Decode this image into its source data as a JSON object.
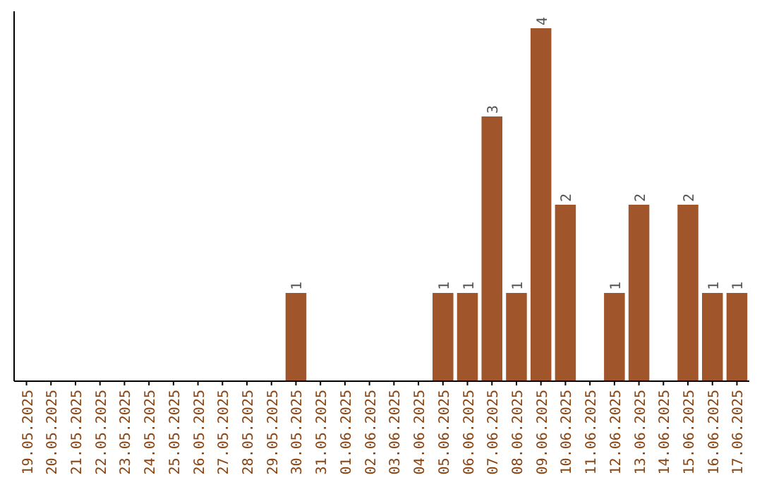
{
  "chart_data": {
    "type": "bar",
    "categories": [
      "19.05.2025",
      "20.05.2025",
      "21.05.2025",
      "22.05.2025",
      "23.05.2025",
      "24.05.2025",
      "25.05.2025",
      "26.05.2025",
      "27.05.2025",
      "28.05.2025",
      "29.05.2025",
      "30.05.2025",
      "31.05.2025",
      "01.06.2025",
      "02.06.2025",
      "03.06.2025",
      "04.06.2025",
      "05.06.2025",
      "06.06.2025",
      "07.06.2025",
      "08.06.2025",
      "09.06.2025",
      "10.06.2025",
      "11.06.2025",
      "12.06.2025",
      "13.06.2025",
      "14.06.2025",
      "15.06.2025",
      "16.06.2025",
      "17.06.2025"
    ],
    "values": [
      0,
      0,
      0,
      0,
      0,
      0,
      0,
      0,
      0,
      0,
      0,
      1,
      0,
      0,
      0,
      0,
      0,
      1,
      1,
      3,
      1,
      4,
      2,
      0,
      1,
      2,
      0,
      2,
      1,
      1
    ],
    "value_labels": [
      null,
      null,
      null,
      null,
      null,
      null,
      null,
      null,
      null,
      null,
      null,
      "1",
      null,
      null,
      null,
      null,
      null,
      "1",
      "1",
      "3",
      "1",
      "4",
      "2",
      null,
      "1",
      "2",
      null,
      "2",
      "1",
      "1"
    ],
    "color": "#a0562a"
  }
}
